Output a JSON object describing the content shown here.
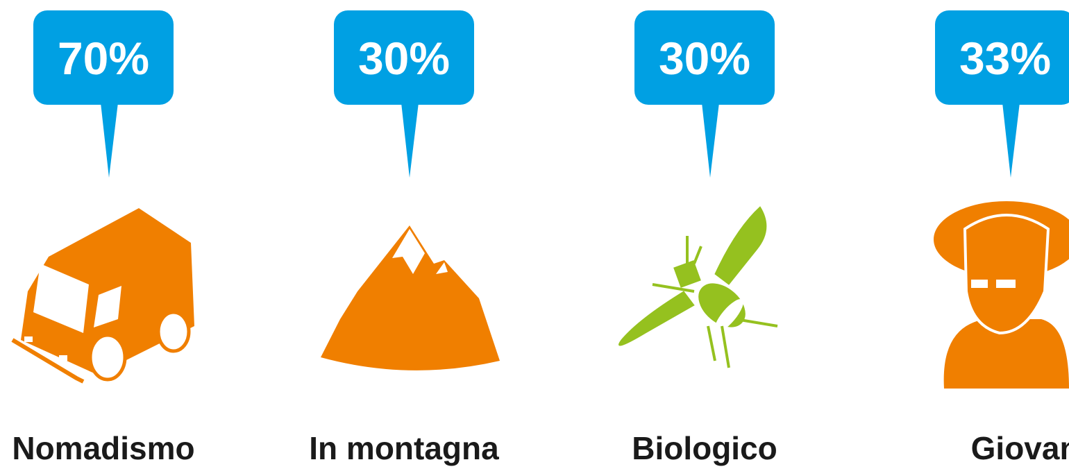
{
  "items": [
    {
      "value_label": "70%",
      "label": "Nomadismo"
    },
    {
      "value_label": "30%",
      "label": "In montagna"
    },
    {
      "value_label": "30%",
      "label": "Biologico"
    },
    {
      "value_label": "33%",
      "label": "Giovani"
    }
  ]
}
